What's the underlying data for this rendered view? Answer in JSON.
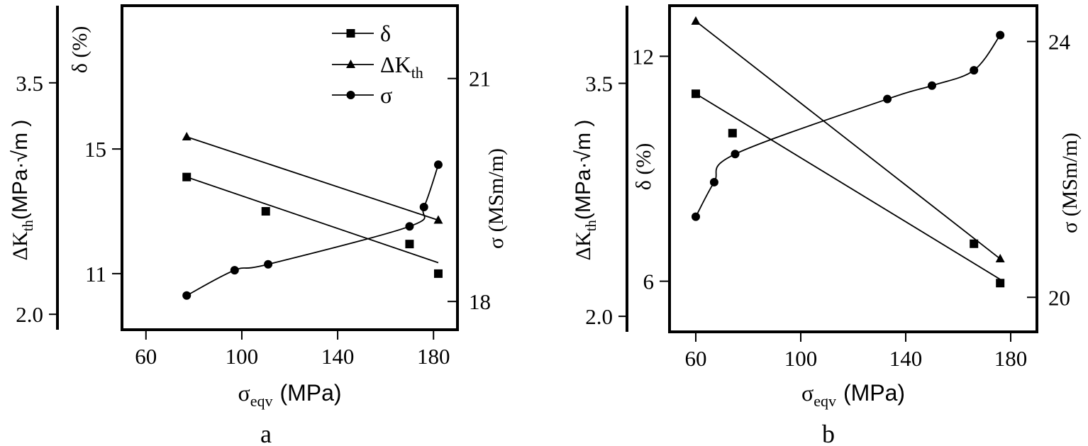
{
  "chart_data": [
    {
      "panel_label": "a",
      "type": "scatter",
      "xlabel_main": "σ",
      "xlabel_sub": "eqv",
      "xlabel_unit": "(MPa)",
      "xlim": [
        50,
        190
      ],
      "x_ticks": [
        60,
        100,
        140,
        180
      ],
      "delta_axis": {
        "label": "δ (%)",
        "lim": [
          9.2,
          19.6
        ],
        "ticks": [
          11,
          15
        ]
      },
      "dk_axis": {
        "label_main": "ΔK",
        "label_sub": "th",
        "label_unit": "(MPa·√m )",
        "lim": [
          1.9,
          4.0
        ],
        "ticks": [
          "2.0",
          "3.5"
        ],
        "tick_values": [
          2.0,
          3.5
        ]
      },
      "sigma_axis": {
        "label": "σ (MSm/m)",
        "lim": [
          17.62,
          21.98
        ],
        "ticks": [
          18,
          21
        ]
      },
      "legend": {
        "placement": "top-right",
        "entries": [
          "δ",
          "ΔK",
          "σ"
        ],
        "dk_sub": "th"
      },
      "series": [
        {
          "name": "δ",
          "marker": "square",
          "axis": "delta",
          "x": [
            77,
            110,
            170,
            182
          ],
          "y": [
            14.1,
            13.0,
            11.95,
            11.0
          ],
          "fit_line": {
            "x": [
              77,
              182
            ],
            "y": [
              14.1,
              11.35
            ]
          }
        },
        {
          "name": "ΔK",
          "marker": "triangle",
          "axis": "dk",
          "x": [
            77,
            182
          ],
          "y": [
            3.15,
            2.61
          ],
          "fit_line": {
            "x": [
              77,
              182
            ],
            "y": [
              3.15,
              2.61
            ]
          }
        },
        {
          "name": "σ",
          "marker": "circle",
          "axis": "sigma",
          "x": [
            77,
            97,
            111,
            170,
            176,
            182
          ],
          "y": [
            18.08,
            18.42,
            18.5,
            19.01,
            19.27,
            19.84
          ],
          "smooth": true
        }
      ]
    },
    {
      "panel_label": "b",
      "type": "scatter",
      "xlabel_main": "σ",
      "xlabel_sub": "eqv",
      "xlabel_unit": "(MPa)",
      "xlim": [
        50,
        190
      ],
      "x_ticks": [
        60,
        100,
        140,
        180
      ],
      "delta_axis": {
        "label": "δ (%)",
        "lim": [
          4.65,
          13.35
        ],
        "ticks": [
          6,
          12
        ]
      },
      "dk_axis": {
        "label_main": "ΔK",
        "label_sub": "th",
        "label_unit": "(MPa·√m )",
        "lim": [
          1.9,
          4.0
        ],
        "ticks": [
          "2.0",
          "3.5"
        ],
        "tick_values": [
          2.0,
          3.5
        ]
      },
      "sigma_axis": {
        "label": "σ (MSm/m)",
        "lim": [
          19.46,
          24.56
        ],
        "ticks": [
          20,
          24
        ]
      },
      "series": [
        {
          "name": "δ",
          "marker": "square",
          "axis": "delta",
          "x": [
            60,
            74,
            166,
            176
          ],
          "y": [
            11.0,
            9.95,
            7.0,
            5.95
          ],
          "fit_line": {
            "x": [
              60,
              176
            ],
            "y": [
              11.0,
              6.05
            ]
          }
        },
        {
          "name": "ΔK",
          "marker": "triangle",
          "axis": "dk",
          "x": [
            60,
            176
          ],
          "y": [
            3.9,
            2.37
          ],
          "fit_line": {
            "x": [
              60,
              176
            ],
            "y": [
              3.9,
              2.37
            ]
          }
        },
        {
          "name": "σ",
          "marker": "circle",
          "axis": "sigma",
          "x": [
            60,
            67,
            75,
            133,
            150,
            166,
            176
          ],
          "y": [
            21.26,
            21.8,
            22.24,
            23.1,
            23.31,
            23.55,
            24.1
          ],
          "smooth": true
        }
      ]
    }
  ]
}
